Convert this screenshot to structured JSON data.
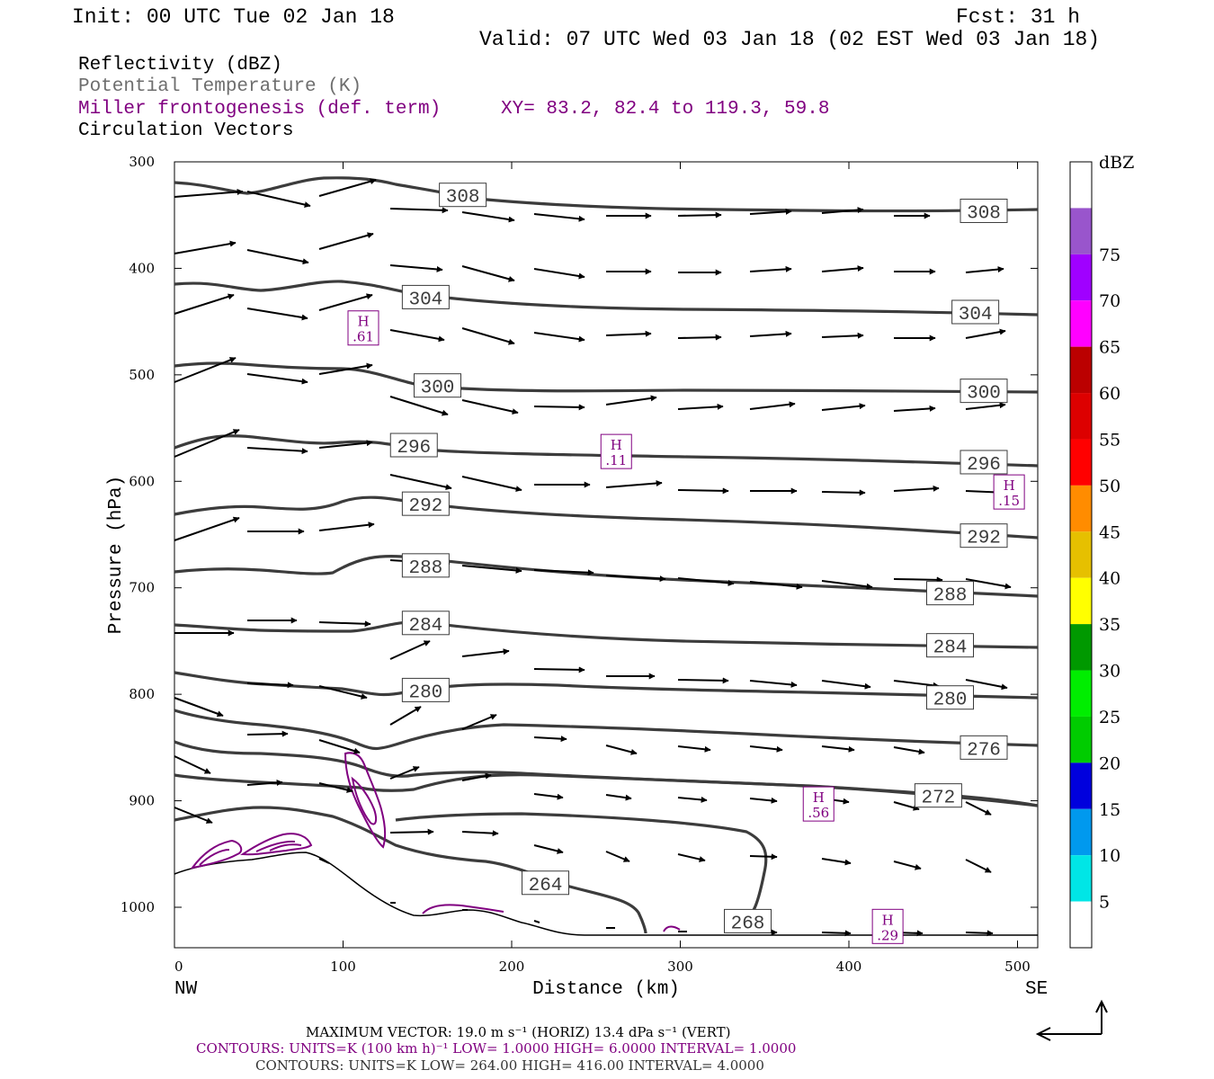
{
  "header": {
    "init": "Init: 00 UTC Tue 02 Jan 18",
    "fcst": "Fcst:   31 h",
    "valid": "Valid: 07 UTC Wed 03 Jan 18 (02 EST Wed 03 Jan 18)"
  },
  "legend": {
    "reflectivity": "Reflectivity (dBZ)",
    "theta": "Potential Temperature (K)",
    "miller": "Miller frontogenesis (def. term)",
    "xy": "XY=  83.2, 82.4 to 119.3, 59.8",
    "vectors": "Circulation Vectors"
  },
  "colors": {
    "theta": "#3c3c3c",
    "miller": "#800080",
    "text": "#000000",
    "gray_text": "#6e6e6e"
  },
  "chart_data": {
    "type": "cross-section",
    "xlabel": "Distance (km)",
    "ylabel": "Pressure (hPa)",
    "xlim": [
      0,
      512
    ],
    "ylim": [
      1038,
      300
    ],
    "x_ticks": [
      0,
      100,
      200,
      300,
      400,
      500
    ],
    "y_ticks": [
      300,
      400,
      500,
      600,
      700,
      800,
      900,
      1000
    ],
    "x_end_labels": {
      "left": "NW",
      "right": "SE"
    },
    "theta_labels": [
      {
        "text": "308",
        "x": 171,
        "p": 331
      },
      {
        "text": "308",
        "x": 480,
        "p": 346
      },
      {
        "text": "304",
        "x": 149,
        "p": 427
      },
      {
        "text": "304",
        "x": 475,
        "p": 441
      },
      {
        "text": "300",
        "x": 156,
        "p": 510
      },
      {
        "text": "300",
        "x": 480,
        "p": 515
      },
      {
        "text": "296",
        "x": 142,
        "p": 566
      },
      {
        "text": "296",
        "x": 480,
        "p": 582
      },
      {
        "text": "292",
        "x": 149,
        "p": 621
      },
      {
        "text": "292",
        "x": 480,
        "p": 651
      },
      {
        "text": "288",
        "x": 149,
        "p": 679
      },
      {
        "text": "288",
        "x": 460,
        "p": 705
      },
      {
        "text": "284",
        "x": 149,
        "p": 733
      },
      {
        "text": "284",
        "x": 460,
        "p": 754
      },
      {
        "text": "280",
        "x": 149,
        "p": 796
      },
      {
        "text": "280",
        "x": 460,
        "p": 803
      },
      {
        "text": "276",
        "x": 480,
        "p": 850
      },
      {
        "text": "272",
        "x": 453,
        "p": 895
      },
      {
        "text": "264",
        "x": 220,
        "p": 977
      },
      {
        "text": "268",
        "x": 340,
        "p": 1013
      }
    ],
    "maxima": [
      {
        "label": "H",
        "value": ".61",
        "x": 112,
        "p": 456
      },
      {
        "label": "H",
        "value": ".11",
        "x": 262,
        "p": 572
      },
      {
        "label": "H",
        "value": ".15",
        "x": 495,
        "p": 610
      },
      {
        "label": "H",
        "value": ".56",
        "x": 382,
        "p": 903
      },
      {
        "label": "H",
        "value": ".29",
        "x": 423,
        "p": 1018
      }
    ],
    "colorbar": {
      "title": "dBZ",
      "labels": [
        "5",
        "10",
        "15",
        "20",
        "25",
        "30",
        "35",
        "40",
        "45",
        "50",
        "55",
        "60",
        "65",
        "70",
        "75"
      ],
      "colors": [
        "#ffffff",
        "#00e6e6",
        "#0099ee",
        "#0000dd",
        "#00cc00",
        "#00ee00",
        "#009900",
        "#ffff00",
        "#e6c000",
        "#ff8c00",
        "#ff0000",
        "#dd0000",
        "#bb0000",
        "#ff00ff",
        "#a000ff",
        "#9955cc",
        "#ffffff"
      ]
    }
  },
  "footer": {
    "vector_line": "MAXIMUM VECTOR:  19.0 m s⁻¹ (HORIZ)         13.4 dPa s⁻¹ (VERT)",
    "miller_contours": "CONTOURS:  UNITS=K (100 km h)⁻¹  LOW=   1.0000      HIGH=   6.0000       INTERVAL=    1.0000",
    "theta_contours": "CONTOURS:  UNITS=K  LOW=   264.00       HIGH=   416.00        INTERVAL=     4.0000"
  }
}
